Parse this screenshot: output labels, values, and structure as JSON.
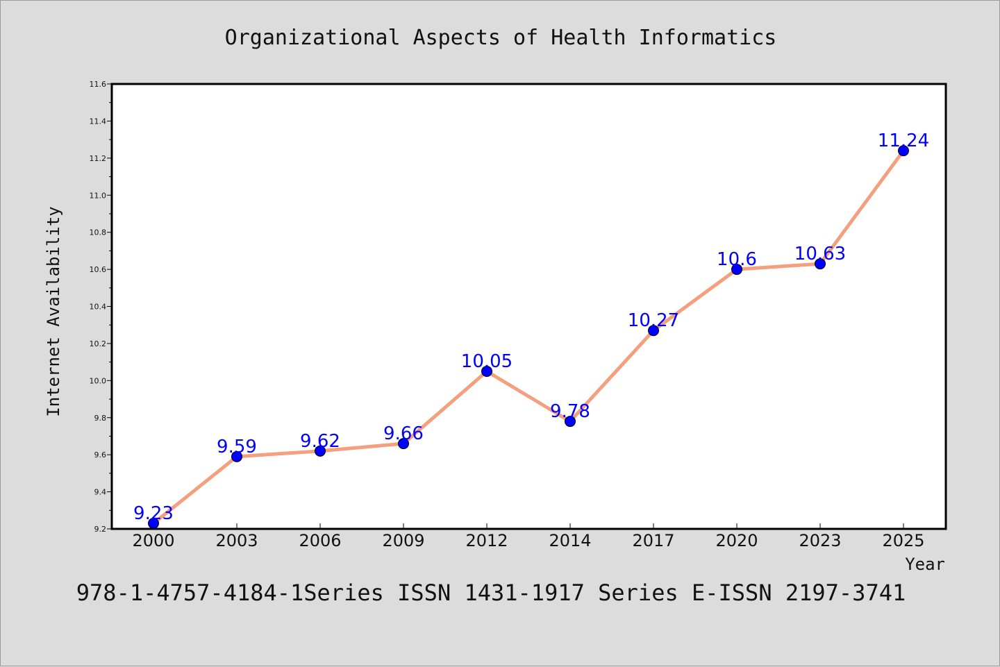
{
  "chart_data": {
    "type": "line",
    "title": "Organizational Aspects of Health Informatics",
    "xlabel": "Year",
    "ylabel": "Internet Availability",
    "categories": [
      "2000",
      "2003",
      "2006",
      "2009",
      "2012",
      "2014",
      "2017",
      "2020",
      "2023",
      "2025"
    ],
    "series": [
      {
        "values": [
          9.23,
          9.59,
          9.62,
          9.66,
          10.05,
          9.78,
          10.27,
          10.6,
          10.63,
          11.24
        ],
        "data_labels": [
          "9.23",
          "9.59",
          "9.62",
          "9.66",
          "10.05",
          "9.78",
          "10.27",
          "10.6",
          "10.63",
          "11.24"
        ],
        "line_color": "#f4a07e",
        "marker_color": "#0000ff",
        "label_color": "#0000ff"
      }
    ],
    "ylim": [
      9.2,
      11.6
    ],
    "yticks": [
      "9.2",
      "9.4",
      "9.6",
      "9.8",
      "10.0",
      "10.2",
      "10.4",
      "10.6",
      "10.8",
      "11.0",
      "11.2",
      "11.4",
      "11.6"
    ],
    "grid": false,
    "legend": "none"
  },
  "footer": "978-1-4757-4184-1Series ISSN 1431-1917 Series E-ISSN 2197-3741",
  "colors": {
    "background": "#dcdcdc",
    "plot_background": "#ffffff",
    "axis": "#000000"
  }
}
